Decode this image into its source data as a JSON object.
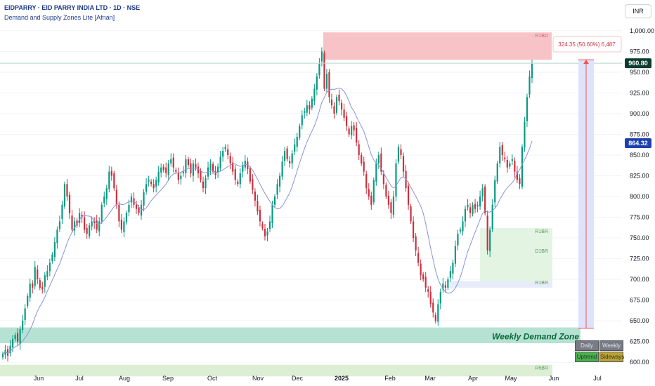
{
  "header": {
    "symbol_line": "EIDPARRY · EID PARRY INDIA LTD · 1D · NSE",
    "indicator_line": "Demand and Supply Zones Lite [Afnan]"
  },
  "currency_button": "INR",
  "colors": {
    "up": "#089981",
    "down": "#cc2f3c",
    "ma": "#8a93d6",
    "supply_zone": "#f8c3c7",
    "demand_zone": "#b6e2d3",
    "range_fill": "#dde3fb",
    "measure": "#ef5350",
    "price_label_bg": "#0b3d2e",
    "ma_label_bg": "#1e40af"
  },
  "chart_data": {
    "type": "candlestick",
    "y_axis": {
      "ylim": [
        590,
        1010
      ],
      "ticks": [
        "1,000.00",
        "975.00",
        "950.00",
        "925.00",
        "900.00",
        "875.00",
        "850.00",
        "825.00",
        "800.00",
        "775.00",
        "750.00",
        "725.00",
        "700.00",
        "675.00",
        "650.00",
        "625.00",
        "600.00"
      ],
      "tick_values": [
        1000,
        975,
        950,
        925,
        900,
        875,
        850,
        825,
        800,
        775,
        750,
        725,
        700,
        675,
        650,
        625,
        600
      ]
    },
    "x_axis": {
      "labels": [
        "Jun",
        "Jul",
        "Aug",
        "Sep",
        "Oct",
        "Nov",
        "Dec",
        "2025",
        "Feb",
        "Mar",
        "Apr",
        "May",
        "Jun",
        "Jul"
      ],
      "bold_label": "2025"
    },
    "closes": [
      610,
      615,
      608,
      620,
      628,
      633,
      625,
      640,
      650,
      665,
      680,
      695,
      690,
      715,
      700,
      690,
      688,
      705,
      710,
      720,
      730,
      745,
      760,
      770,
      790,
      815,
      800,
      780,
      760,
      770,
      765,
      780,
      775,
      760,
      755,
      765,
      770,
      768,
      760,
      770,
      790,
      800,
      810,
      830,
      825,
      810,
      790,
      770,
      760,
      770,
      780,
      790,
      800,
      790,
      785,
      780,
      790,
      805,
      815,
      820,
      815,
      810,
      820,
      830,
      835,
      832,
      828,
      840,
      845,
      835,
      830,
      820,
      825,
      830,
      845,
      838,
      828,
      840,
      835,
      828,
      820,
      810,
      822,
      835,
      840,
      830,
      826,
      836,
      848,
      855,
      860,
      850,
      840,
      830,
      820,
      815,
      828,
      838,
      843,
      833,
      818,
      808,
      795,
      782,
      770,
      762,
      752,
      758,
      770,
      790,
      800,
      815,
      825,
      842,
      855,
      845,
      840,
      852,
      863,
      872,
      885,
      898,
      903,
      910,
      905,
      918,
      930,
      945,
      960,
      975,
      930,
      948,
      920,
      910,
      900,
      920,
      915,
      905,
      895,
      885,
      875,
      885,
      880,
      865,
      850,
      840,
      830,
      810,
      800,
      790,
      820,
      840,
      850,
      830,
      815,
      800,
      790,
      780,
      800,
      840,
      860,
      850,
      830,
      810,
      790,
      770,
      750,
      735,
      720,
      705,
      700,
      690,
      685,
      670,
      660,
      650,
      670,
      685,
      695,
      690,
      700,
      710,
      720,
      740,
      755,
      760,
      770,
      785,
      790,
      780,
      790,
      785,
      790,
      800,
      810,
      780,
      735,
      760,
      790,
      820,
      840,
      860,
      850,
      845,
      835,
      840,
      845,
      830,
      820,
      815,
      860,
      890,
      920,
      945,
      960
    ],
    "series": [
      {
        "name": "Weekly Demand Zone",
        "from": 623,
        "to": 642
      },
      {
        "name": "R1BD",
        "from": 965,
        "to": 998
      }
    ],
    "zone_labels": {
      "supply_top": "R1BD",
      "demand_top": "R1BR",
      "demand_mid": "D1BR",
      "demand_bottom": "R1BR",
      "weekly_demand": "Weekly Demand Zone",
      "bottom_zone": "R5BR"
    },
    "range_measure": {
      "label": "324.35 (50.60%) 6,487",
      "from": 641,
      "to": 965
    },
    "last_price": {
      "label": "960.80",
      "value": 960.8
    },
    "ma_value": {
      "label": "864.32",
      "value": 864.32
    }
  },
  "mtf_table": {
    "h1": "Daily",
    "h2": "Weekly",
    "v1": "Uptrend",
    "v2": "Sideways"
  }
}
